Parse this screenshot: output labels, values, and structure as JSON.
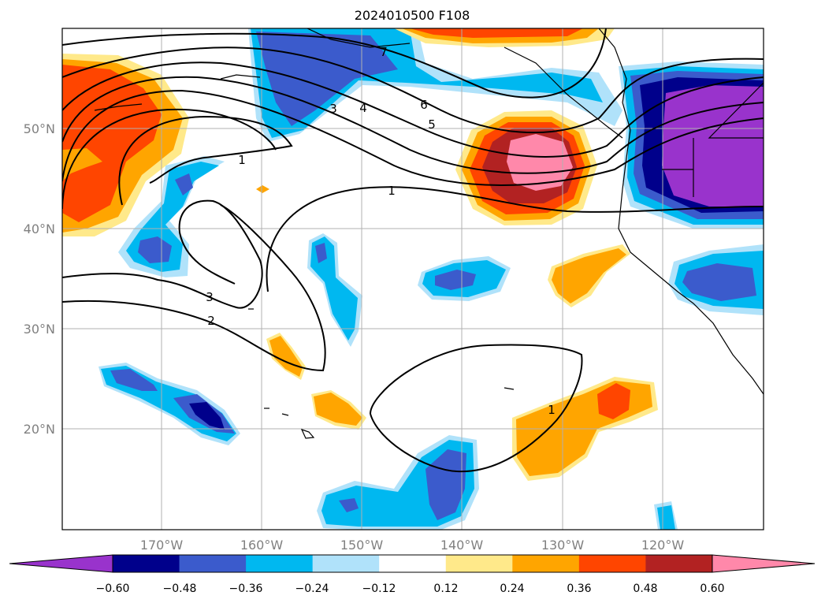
{
  "map": {
    "title": "2024010500 F108",
    "region": "North Pacific / western North America",
    "lat_labels": [
      "50°N",
      "40°N",
      "30°N",
      "20°N"
    ],
    "lon_labels": [
      "170°W",
      "160°W",
      "150°W",
      "140°W",
      "130°W",
      "120°W"
    ],
    "contour_labels": [
      "7",
      "6",
      "5",
      "4",
      "3",
      "1",
      "1",
      "3",
      "2",
      "1"
    ]
  },
  "colorbar": {
    "tick_labels": [
      "−0.60",
      "−0.48",
      "−0.36",
      "−0.24",
      "−0.12",
      "0.12",
      "0.24",
      "0.36",
      "0.48",
      "0.60"
    ],
    "colors": [
      "#9933cc",
      "#00008b",
      "#3b5bcc",
      "#00b8f0",
      "#b0e2fa",
      "#ffffff",
      "#ffe98a",
      "#ffa500",
      "#ff4500",
      "#b22222",
      "#ff88aa"
    ]
  },
  "palette": {
    "grid": "#b0b0b0",
    "contour": "#000000",
    "coast": "#000000"
  }
}
